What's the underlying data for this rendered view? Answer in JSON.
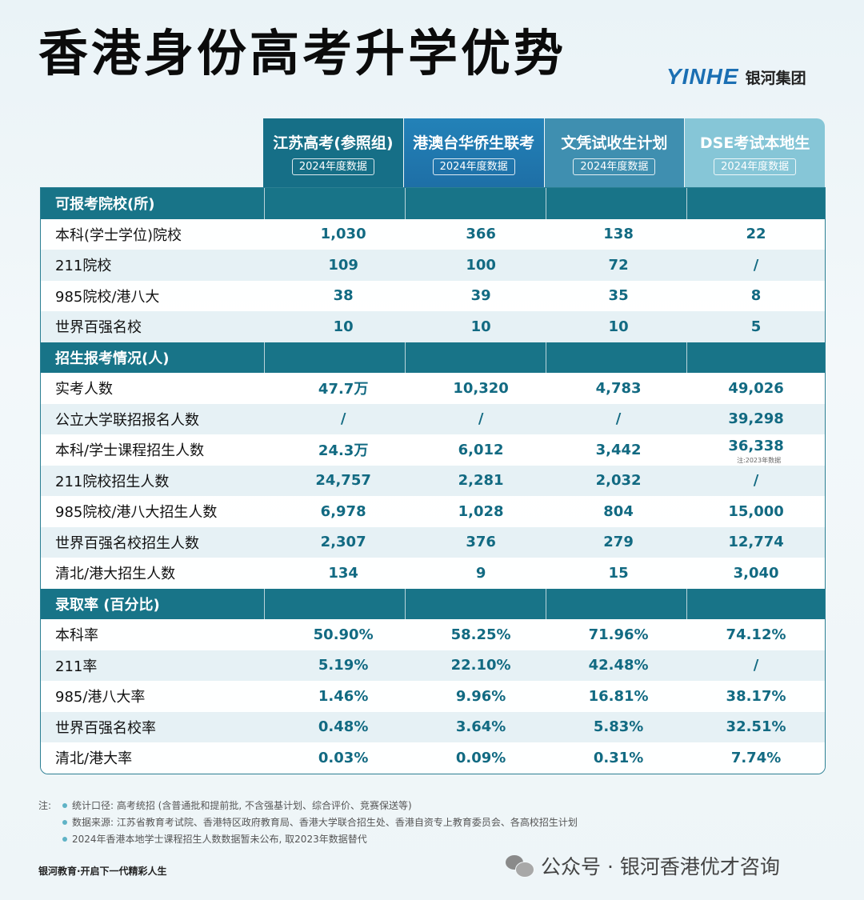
{
  "header": {
    "title": "香港身份高考升学优势",
    "brand_logo": "YINHE",
    "brand_name": "银河集团"
  },
  "columns": [
    {
      "name": "江苏高考(参照组)",
      "sub": "2024年度数据"
    },
    {
      "name": "港澳台华侨生联考",
      "sub": "2024年度数据"
    },
    {
      "name": "文凭试收生计划",
      "sub": "2024年度数据"
    },
    {
      "name": "DSE考试本地生",
      "sub": "2024年度数据"
    }
  ],
  "sections": [
    {
      "title": "可报考院校(所)",
      "rows": [
        {
          "label": "本科(学士学位)院校",
          "values": [
            "1,030",
            "366",
            "138",
            "22"
          ]
        },
        {
          "label": "211院校",
          "values": [
            "109",
            "100",
            "72",
            "/"
          ]
        },
        {
          "label": "985院校/港八大",
          "values": [
            "38",
            "39",
            "35",
            "8"
          ]
        },
        {
          "label": "世界百强名校",
          "values": [
            "10",
            "10",
            "10",
            "5"
          ]
        }
      ]
    },
    {
      "title": "招生报考情况(人)",
      "rows": [
        {
          "label": "实考人数",
          "values": [
            "47.7万",
            "10,320",
            "4,783",
            "49,026"
          ]
        },
        {
          "label": "公立大学联招报名人数",
          "values": [
            "/",
            "/",
            "/",
            "39,298"
          ]
        },
        {
          "label": "本科/学士课程招生人数",
          "values": [
            "24.3万",
            "6,012",
            "3,442",
            "36,338"
          ],
          "note": "注:2023年数据"
        },
        {
          "label": "211院校招生人数",
          "values": [
            "24,757",
            "2,281",
            "2,032",
            "/"
          ]
        },
        {
          "label": "985院校/港八大招生人数",
          "values": [
            "6,978",
            "1,028",
            "804",
            "15,000"
          ]
        },
        {
          "label": "世界百强名校招生人数",
          "values": [
            "2,307",
            "376",
            "279",
            "12,774"
          ]
        },
        {
          "label": "清北/港大招生人数",
          "values": [
            "134",
            "9",
            "15",
            "3,040"
          ]
        }
      ]
    },
    {
      "title": "录取率 (百分比)",
      "rows": [
        {
          "label": "本科率",
          "values": [
            "50.90%",
            "58.25%",
            "71.96%",
            "74.12%"
          ]
        },
        {
          "label": "211率",
          "values": [
            "5.19%",
            "22.10%",
            "42.48%",
            "/"
          ]
        },
        {
          "label": "985/港八大率",
          "values": [
            "1.46%",
            "9.96%",
            "16.81%",
            "38.17%"
          ]
        },
        {
          "label": "世界百强名校率",
          "values": [
            "0.48%",
            "3.64%",
            "5.83%",
            "32.51%"
          ]
        },
        {
          "label": "清北/港大率",
          "values": [
            "0.03%",
            "0.09%",
            "0.31%",
            "7.74%"
          ]
        }
      ]
    }
  ],
  "notes": {
    "prefix": "注:",
    "items": [
      "统计口径: 高考统招 (含普通批和提前批, 不含强基计划、综合评价、竞赛保送等)",
      "数据来源: 江苏省教育考试院、香港特区政府教育局、香港大学联合招生处、香港自资专上教育委员会、各高校招生计划",
      "2024年香港本地学士课程招生人数数据暂未公布, 取2023年数据替代"
    ]
  },
  "footer": {
    "slogan": "银河教育·开启下一代精彩人生",
    "wechat": "公众号 · 银河香港优才咨询"
  }
}
